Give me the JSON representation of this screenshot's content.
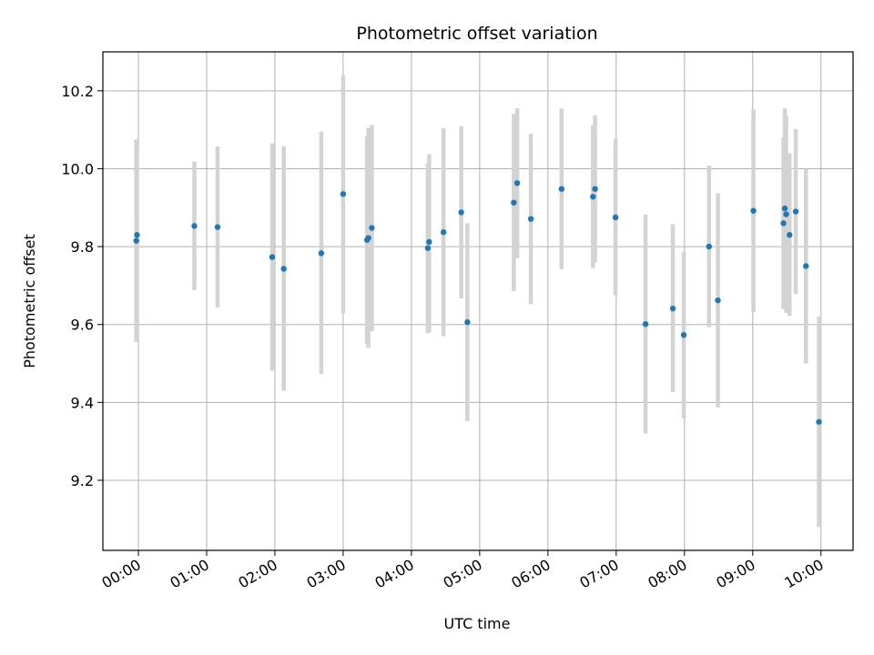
{
  "chart_data": {
    "type": "scatter",
    "title": "Photometric offset variation",
    "xlabel": "UTC time",
    "ylabel": "Photometric offset",
    "x_unit": "UTC hours",
    "xlim": [
      -0.52,
      10.47
    ],
    "ylim": [
      9.02,
      10.3
    ],
    "grid": true,
    "x_ticks": [
      {
        "value": 0,
        "label": "00:00"
      },
      {
        "value": 1,
        "label": "01:00"
      },
      {
        "value": 2,
        "label": "02:00"
      },
      {
        "value": 3,
        "label": "03:00"
      },
      {
        "value": 4,
        "label": "04:00"
      },
      {
        "value": 5,
        "label": "05:00"
      },
      {
        "value": 6,
        "label": "06:00"
      },
      {
        "value": 7,
        "label": "07:00"
      },
      {
        "value": 8,
        "label": "08:00"
      },
      {
        "value": 9,
        "label": "09:00"
      },
      {
        "value": 10,
        "label": "10:00"
      }
    ],
    "y_ticks": [
      {
        "value": 9.2,
        "label": "9.2"
      },
      {
        "value": 9.4,
        "label": "9.4"
      },
      {
        "value": 9.6,
        "label": "9.6"
      },
      {
        "value": 9.8,
        "label": "9.8"
      },
      {
        "value": 10.0,
        "label": "10.0"
      },
      {
        "value": 10.2,
        "label": "10.2"
      }
    ],
    "colors": {
      "point": "#1f77b4",
      "errorbar": "#d3d3d3",
      "grid": "#b0b0b0"
    },
    "points": [
      {
        "x": -0.03,
        "y": 9.815,
        "lo": 9.555,
        "hi": 10.075
      },
      {
        "x": -0.02,
        "y": 9.83,
        "lo": 9.62,
        "hi": 10.04
      },
      {
        "x": 0.82,
        "y": 9.853,
        "lo": 9.688,
        "hi": 10.018
      },
      {
        "x": 1.16,
        "y": 9.85,
        "lo": 9.643,
        "hi": 10.057
      },
      {
        "x": 1.96,
        "y": 9.773,
        "lo": 9.481,
        "hi": 10.065
      },
      {
        "x": 2.13,
        "y": 9.743,
        "lo": 9.43,
        "hi": 10.058
      },
      {
        "x": 2.68,
        "y": 9.783,
        "lo": 9.473,
        "hi": 10.095
      },
      {
        "x": 3.0,
        "y": 9.935,
        "lo": 9.63,
        "hi": 10.24
      },
      {
        "x": 3.35,
        "y": 9.817,
        "lo": 9.55,
        "hi": 10.084
      },
      {
        "x": 3.37,
        "y": 9.822,
        "lo": 9.54,
        "hi": 10.105
      },
      {
        "x": 3.42,
        "y": 9.848,
        "lo": 9.583,
        "hi": 10.112
      },
      {
        "x": 4.24,
        "y": 9.796,
        "lo": 9.578,
        "hi": 10.014
      },
      {
        "x": 4.26,
        "y": 9.812,
        "lo": 9.58,
        "hi": 10.037
      },
      {
        "x": 4.47,
        "y": 9.837,
        "lo": 9.57,
        "hi": 10.104
      },
      {
        "x": 4.73,
        "y": 9.888,
        "lo": 9.667,
        "hi": 10.109
      },
      {
        "x": 4.82,
        "y": 9.606,
        "lo": 9.352,
        "hi": 9.86
      },
      {
        "x": 5.5,
        "y": 9.913,
        "lo": 9.686,
        "hi": 10.14
      },
      {
        "x": 5.55,
        "y": 9.963,
        "lo": 9.77,
        "hi": 10.155
      },
      {
        "x": 5.75,
        "y": 9.871,
        "lo": 9.652,
        "hi": 10.09
      },
      {
        "x": 6.2,
        "y": 9.948,
        "lo": 9.742,
        "hi": 10.155
      },
      {
        "x": 6.66,
        "y": 9.928,
        "lo": 9.745,
        "hi": 10.112
      },
      {
        "x": 6.69,
        "y": 9.948,
        "lo": 9.76,
        "hi": 10.137
      },
      {
        "x": 6.99,
        "y": 9.875,
        "lo": 9.675,
        "hi": 10.077
      },
      {
        "x": 7.43,
        "y": 9.601,
        "lo": 9.32,
        "hi": 9.882
      },
      {
        "x": 7.83,
        "y": 9.641,
        "lo": 9.426,
        "hi": 9.857
      },
      {
        "x": 7.99,
        "y": 9.573,
        "lo": 9.358,
        "hi": 9.787
      },
      {
        "x": 8.36,
        "y": 9.8,
        "lo": 9.593,
        "hi": 10.008
      },
      {
        "x": 8.49,
        "y": 9.662,
        "lo": 9.387,
        "hi": 9.937
      },
      {
        "x": 9.01,
        "y": 9.892,
        "lo": 9.632,
        "hi": 10.152
      },
      {
        "x": 9.45,
        "y": 9.86,
        "lo": 9.64,
        "hi": 10.08
      },
      {
        "x": 9.47,
        "y": 9.898,
        "lo": 9.64,
        "hi": 10.155
      },
      {
        "x": 9.49,
        "y": 9.883,
        "lo": 9.63,
        "hi": 10.136
      },
      {
        "x": 9.54,
        "y": 9.83,
        "lo": 9.622,
        "hi": 10.04
      },
      {
        "x": 9.63,
        "y": 9.89,
        "lo": 9.678,
        "hi": 10.102
      },
      {
        "x": 9.78,
        "y": 9.75,
        "lo": 9.5,
        "hi": 10.0
      },
      {
        "x": 9.97,
        "y": 9.35,
        "lo": 9.08,
        "hi": 9.62
      }
    ]
  }
}
